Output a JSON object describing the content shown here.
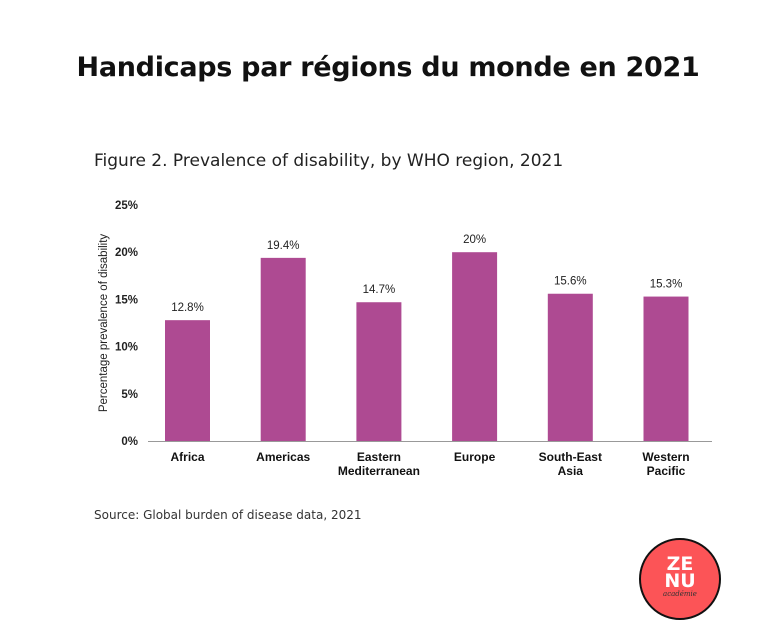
{
  "header": {
    "title": "Handicaps par régions du monde en 2021"
  },
  "chart_data": {
    "type": "bar",
    "title": "Figure 2. Prevalence of disability, by WHO region, 2021",
    "categories": [
      [
        "Africa"
      ],
      [
        "Americas"
      ],
      [
        "Eastern",
        "Mediterranean"
      ],
      [
        "Europe"
      ],
      [
        "South-East",
        "Asia"
      ],
      [
        "Western",
        "Pacific"
      ]
    ],
    "values": [
      12.8,
      19.4,
      14.7,
      20,
      15.6,
      15.3
    ],
    "data_labels": [
      "12.8%",
      "19.4%",
      "14.7%",
      "20%",
      "15.6%",
      "15.3%"
    ],
    "ylabel": "Percentage prevalence of disability",
    "xlabel": "",
    "ylim": [
      0,
      25
    ],
    "yticks": [
      "0%",
      "5%",
      "10%",
      "15%",
      "20%",
      "25%"
    ],
    "grid": false,
    "bar_color": "#ae4a92"
  },
  "source": "Source: Global burden of disease data, 2021",
  "logo": {
    "line1": "ZE",
    "line2": "NU",
    "line3": "académie",
    "color": "#fc5457"
  }
}
